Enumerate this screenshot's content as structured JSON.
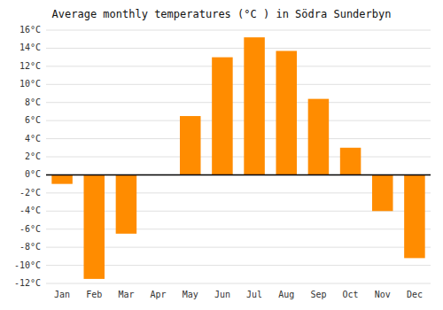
{
  "chart_data": {
    "type": "bar",
    "title": "Average monthly temperatures (°C ) in Södra Sunderbyn",
    "categories": [
      "Jan",
      "Feb",
      "Mar",
      "Apr",
      "May",
      "Jun",
      "Jul",
      "Aug",
      "Sep",
      "Oct",
      "Nov",
      "Dec"
    ],
    "values": [
      -1.0,
      -11.5,
      -6.5,
      0.0,
      6.5,
      13.0,
      15.2,
      13.7,
      8.4,
      3.0,
      -4.0,
      -9.2
    ],
    "color": "#FF8C00",
    "ylim": [
      -12,
      16
    ],
    "yticks": [
      {
        "value": -12,
        "label": "-12°C"
      },
      {
        "value": -10,
        "label": "-10°C"
      },
      {
        "value": -8,
        "label": "-8°C"
      },
      {
        "value": -6,
        "label": "-6°C"
      },
      {
        "value": -4,
        "label": "-4°C"
      },
      {
        "value": -2,
        "label": "-2°C"
      },
      {
        "value": 0,
        "label": "0°C"
      },
      {
        "value": 2,
        "label": "2°C"
      },
      {
        "value": 4,
        "label": "4°C"
      },
      {
        "value": 6,
        "label": "6°C"
      },
      {
        "value": 8,
        "label": "8°C"
      },
      {
        "value": 10,
        "label": "10°C"
      },
      {
        "value": 12,
        "label": "12°C"
      },
      {
        "value": 14,
        "label": "14°C"
      },
      {
        "value": 16,
        "label": "16°C"
      }
    ],
    "grid": true
  }
}
